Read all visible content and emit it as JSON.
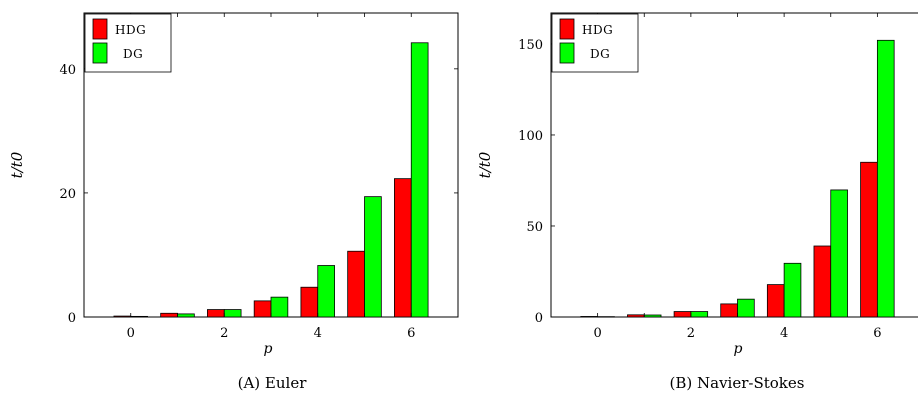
{
  "figure": {
    "chart_data": [
      {
        "type": "bar",
        "caption": "(A) Euler",
        "xlabel": "p",
        "ylabel": "t/t0",
        "xlim": [
          -1,
          7
        ],
        "ylim": [
          0,
          49
        ],
        "xticks": [
          0,
          2,
          4,
          6
        ],
        "yticks": [
          0,
          20,
          40
        ],
        "grid": false,
        "legend_position": "top-left",
        "x": [
          0,
          1,
          2,
          3,
          4,
          5,
          6
        ],
        "series": [
          {
            "name": "HDG",
            "color": "#ff0000",
            "values": [
              0.15,
              0.6,
              1.2,
              2.6,
              4.8,
              10.6,
              22.3
            ]
          },
          {
            "name": "DG",
            "color": "#00ff00",
            "values": [
              0.1,
              0.5,
              1.2,
              3.2,
              8.3,
              19.4,
              44.2
            ]
          }
        ]
      },
      {
        "type": "bar",
        "caption": "(B) Navier-Stokes",
        "xlabel": "p",
        "ylabel": "t/t0",
        "xlim": [
          -1,
          7
        ],
        "ylim": [
          0,
          167
        ],
        "xticks": [
          0,
          2,
          4,
          6
        ],
        "yticks": [
          0,
          50,
          100,
          150
        ],
        "grid": false,
        "legend_position": "top-left",
        "x": [
          0,
          1,
          2,
          3,
          4,
          5,
          6
        ],
        "series": [
          {
            "name": "HDG",
            "color": "#ff0000",
            "values": [
              0.3,
              1.2,
              3.0,
              7.2,
              17.8,
              39.0,
              85.0
            ]
          },
          {
            "name": "DG",
            "color": "#00ff00",
            "values": [
              0.2,
              1.1,
              3.0,
              9.8,
              29.5,
              69.8,
              152.0
            ]
          }
        ]
      }
    ]
  }
}
